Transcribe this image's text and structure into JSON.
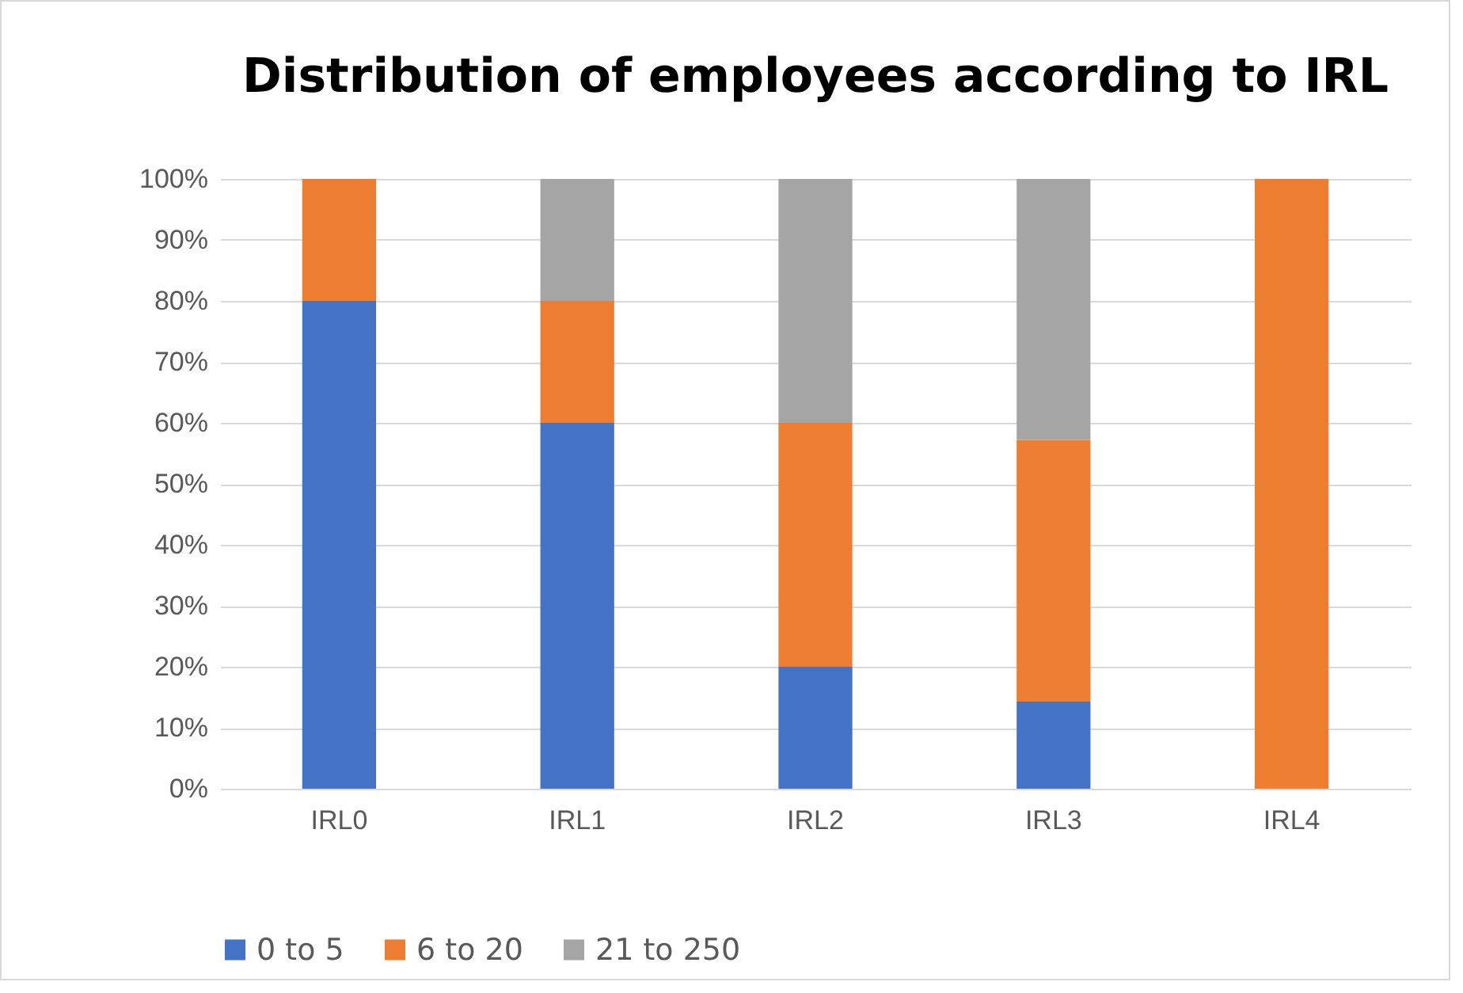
{
  "chart_data": {
    "type": "bar",
    "title": "Distribution of employees according to IRL",
    "categories": [
      "IRL0",
      "IRL1",
      "IRL2",
      "IRL3",
      "IRL4"
    ],
    "stacked": true,
    "series": [
      {
        "name": "0 to 5",
        "color": "#4472c4",
        "values": [
          80,
          60,
          20,
          14.3,
          0
        ]
      },
      {
        "name": "6 to 20",
        "color": "#ed7d31",
        "values": [
          20,
          20,
          40,
          42.9,
          100
        ]
      },
      {
        "name": "21 to 250",
        "color": "#a5a5a5",
        "values": [
          0,
          20,
          40,
          42.8,
          0
        ]
      }
    ],
    "ylim": [
      0,
      100
    ],
    "yticks": [
      {
        "value": 0,
        "label": "0%"
      },
      {
        "value": 10,
        "label": "10%"
      },
      {
        "value": 20,
        "label": "20%"
      },
      {
        "value": 30,
        "label": "30%"
      },
      {
        "value": 40,
        "label": "40%"
      },
      {
        "value": 50,
        "label": "50%"
      },
      {
        "value": 60,
        "label": "60%"
      },
      {
        "value": 70,
        "label": "70%"
      },
      {
        "value": 80,
        "label": "80%"
      },
      {
        "value": 90,
        "label": "90%"
      },
      {
        "value": 100,
        "label": "100%"
      }
    ],
    "grid": "y",
    "legend": "bottom"
  }
}
